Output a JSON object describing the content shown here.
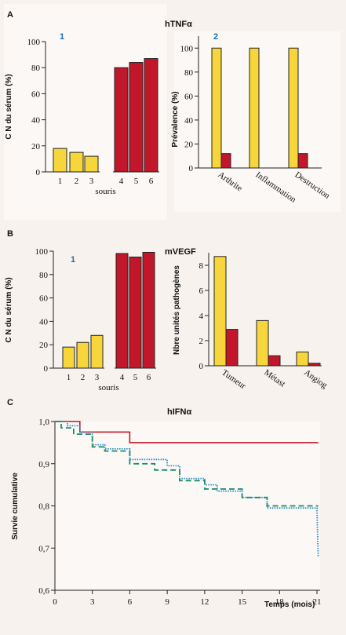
{
  "colors": {
    "yellow": "#f7d63c",
    "red": "#c2162b",
    "green": "#1e8a6a",
    "blue": "#2a8cc6",
    "bar_stroke": "#222"
  },
  "chart_data": [
    {
      "id": "A1",
      "section": "A",
      "title": "hTNFα",
      "panel_number": "1",
      "type": "bar",
      "ylabel": "C N du sérum (%)",
      "xlabel": "souris",
      "ylim": [
        0,
        100
      ],
      "yticks": [
        0,
        20,
        40,
        60,
        80,
        100
      ],
      "categories": [
        "1",
        "2",
        "3",
        "4",
        "5",
        "6"
      ],
      "values": [
        18,
        15,
        12,
        80,
        84,
        87
      ],
      "bar_colors": [
        "yellow",
        "yellow",
        "yellow",
        "red",
        "red",
        "red"
      ]
    },
    {
      "id": "A2",
      "panel_number": "2",
      "type": "bar",
      "ylabel": "Prévalence (%)",
      "ylim": [
        0,
        110
      ],
      "yticks": [
        0,
        20,
        40,
        60,
        80,
        100
      ],
      "categories": [
        "Arthrite",
        "Inflammation",
        "Destruction"
      ],
      "series": [
        {
          "color": "yellow",
          "values": [
            100,
            100,
            100
          ]
        },
        {
          "color": "red",
          "values": [
            12,
            0,
            12
          ]
        }
      ]
    },
    {
      "id": "B1",
      "section": "B",
      "title": "mVEGF",
      "panel_number": "1",
      "type": "bar",
      "ylabel": "C N du sérum (%)",
      "xlabel": "souris",
      "ylim": [
        0,
        100
      ],
      "yticks": [
        0,
        20,
        40,
        60,
        80,
        100
      ],
      "categories": [
        "1",
        "2",
        "3",
        "4",
        "5",
        "6"
      ],
      "values": [
        18,
        22,
        28,
        98,
        95,
        99
      ],
      "bar_colors": [
        "yellow",
        "yellow",
        "yellow",
        "red",
        "red",
        "red"
      ]
    },
    {
      "id": "B2",
      "panel_number": "2",
      "type": "bar",
      "ylabel": "Nbre unités pathogènes",
      "ylim": [
        0,
        9
      ],
      "yticks": [
        0,
        2,
        4,
        6,
        8
      ],
      "categories": [
        "Tumeur",
        "Métast",
        "Angiog"
      ],
      "series": [
        {
          "color": "yellow",
          "values": [
            8.7,
            3.6,
            1.1
          ]
        },
        {
          "color": "red",
          "values": [
            2.9,
            0.8,
            0.2
          ]
        }
      ]
    },
    {
      "id": "C",
      "section": "C",
      "title": "hIFNα",
      "type": "line",
      "xlabel": "Temps (mois)",
      "ylabel": "Survie cumulative",
      "xlim": [
        0,
        21
      ],
      "ylim": [
        0.6,
        1.0
      ],
      "xticks": [
        0,
        3,
        6,
        9,
        12,
        15,
        18,
        21
      ],
      "yticks": [
        0.6,
        0.7,
        0.8,
        0.9,
        1.0
      ],
      "xtick_labels": [
        "0",
        "3",
        "6",
        "9",
        "12",
        "15",
        "18",
        "21"
      ],
      "ytick_labels": [
        "0,6",
        "0,7",
        "0,8",
        "0,9",
        "1,0"
      ],
      "series": [
        {
          "color": "red",
          "style": "solid",
          "x": [
            0,
            2,
            2,
            6,
            6,
            21.1
          ],
          "y": [
            1.0,
            1.0,
            0.975,
            0.975,
            0.95,
            0.95
          ]
        },
        {
          "color": "blue",
          "style": "dotted",
          "x": [
            0,
            1,
            1,
            2,
            2,
            3,
            3,
            4,
            4,
            6,
            6,
            9,
            9,
            10,
            10,
            12,
            12,
            13,
            13,
            15,
            15,
            17,
            17,
            21,
            21,
            21.1
          ],
          "y": [
            1.0,
            1.0,
            0.99,
            0.99,
            0.975,
            0.975,
            0.945,
            0.945,
            0.935,
            0.935,
            0.91,
            0.91,
            0.895,
            0.895,
            0.865,
            0.865,
            0.85,
            0.85,
            0.835,
            0.835,
            0.82,
            0.82,
            0.795,
            0.795,
            0.79,
            0.68
          ]
        },
        {
          "color": "green",
          "style": "dashed",
          "x": [
            0,
            0.5,
            0.5,
            1.5,
            1.5,
            3,
            3,
            4,
            4,
            6,
            6,
            8,
            8,
            10,
            10,
            12,
            12,
            15,
            15,
            17,
            17,
            21.1
          ],
          "y": [
            1.0,
            1.0,
            0.985,
            0.985,
            0.97,
            0.97,
            0.94,
            0.94,
            0.93,
            0.93,
            0.9,
            0.9,
            0.885,
            0.885,
            0.86,
            0.86,
            0.84,
            0.84,
            0.82,
            0.82,
            0.8,
            0.8
          ]
        }
      ]
    }
  ]
}
